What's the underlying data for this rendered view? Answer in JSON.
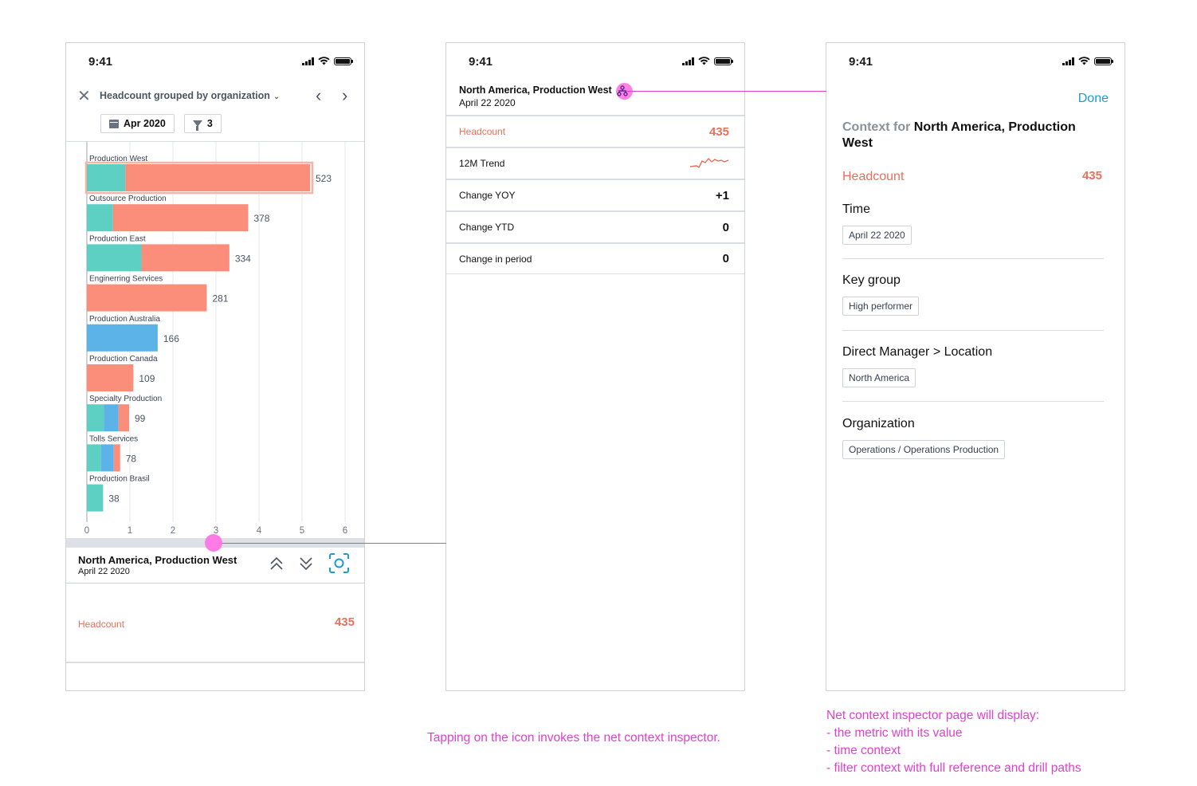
{
  "status_time": "9:41",
  "screen1": {
    "title": "Headcount grouped by organization",
    "date_chip": "Apr 2020",
    "filter_count": "3",
    "chart_data": {
      "type": "bar",
      "orientation": "horizontal",
      "title": "Headcount grouped by organization",
      "categories": [
        "Production West",
        "Outsource Production",
        "Production East",
        "Enginerring Services",
        "Production Australia",
        "Production Canada",
        "Specialty Production",
        "Tolls Services",
        "Production Brasil"
      ],
      "values": [
        523,
        378,
        334,
        281,
        166,
        109,
        99,
        78,
        38
      ],
      "segments": [
        [
          {
            "color": "#5ecfc3",
            "value": 90
          },
          {
            "color": "#fa8e7b",
            "value": 433
          }
        ],
        [
          {
            "color": "#5ecfc3",
            "value": 61
          },
          {
            "color": "#fa8e7b",
            "value": 317
          }
        ],
        [
          {
            "color": "#5ecfc3",
            "value": 128
          },
          {
            "color": "#fa8e7b",
            "value": 206
          }
        ],
        [
          {
            "color": "#fa8e7b",
            "value": 281
          }
        ],
        [
          {
            "color": "#5bb3e7",
            "value": 166
          }
        ],
        [
          {
            "color": "#fa8e7b",
            "value": 109
          }
        ],
        [
          {
            "color": "#5ecfc3",
            "value": 40
          },
          {
            "color": "#5bb3e7",
            "value": 34
          },
          {
            "color": "#fa8e7b",
            "value": 25
          }
        ],
        [
          {
            "color": "#5ecfc3",
            "value": 33
          },
          {
            "color": "#5bb3e7",
            "value": 30
          },
          {
            "color": "#fa8e7b",
            "value": 15
          }
        ],
        [
          {
            "color": "#5ecfc3",
            "value": 38
          }
        ]
      ],
      "highlighted": "Production West",
      "x_ticks": [
        "0",
        "1",
        "2",
        "3",
        "4",
        "5",
        "6"
      ],
      "xlim": [
        0,
        6
      ],
      "grid": true
    },
    "detail": {
      "title": "North America, Production West",
      "date": "April 22 2020",
      "metric_name": "Headcount",
      "metric_value": "435"
    }
  },
  "screen2": {
    "title": "North America, Production West",
    "date": "April 22 2020",
    "rows": [
      {
        "name": "Headcount",
        "value": "435"
      },
      {
        "name": "12M Trend",
        "value": ""
      },
      {
        "name": "Change YOY",
        "value": "+1"
      },
      {
        "name": "Change YTD",
        "value": "0"
      },
      {
        "name": "Change in period",
        "value": "0"
      }
    ]
  },
  "screen3": {
    "done_label": "Done",
    "context_lead": "Context for",
    "context_subject": "North America, Production West",
    "metric_name": "Headcount",
    "metric_value": "435",
    "sections": [
      {
        "heading": "Time",
        "tag": "April 22 2020"
      },
      {
        "heading": "Key group",
        "tag": "High performer"
      },
      {
        "heading": "Direct Manager > Location",
        "tag": "North America"
      },
      {
        "heading": "Organization",
        "tag": "Operations / Operations Production"
      }
    ]
  },
  "annotations": {
    "tap_note": "Tapping on the icon invokes the net context inspector.",
    "inspector_note": [
      "Net context inspector page will display:",
      "- the metric with its value",
      "- time context",
      "- filter context with full reference and drill paths"
    ],
    "accent_color": "#e040d0"
  }
}
